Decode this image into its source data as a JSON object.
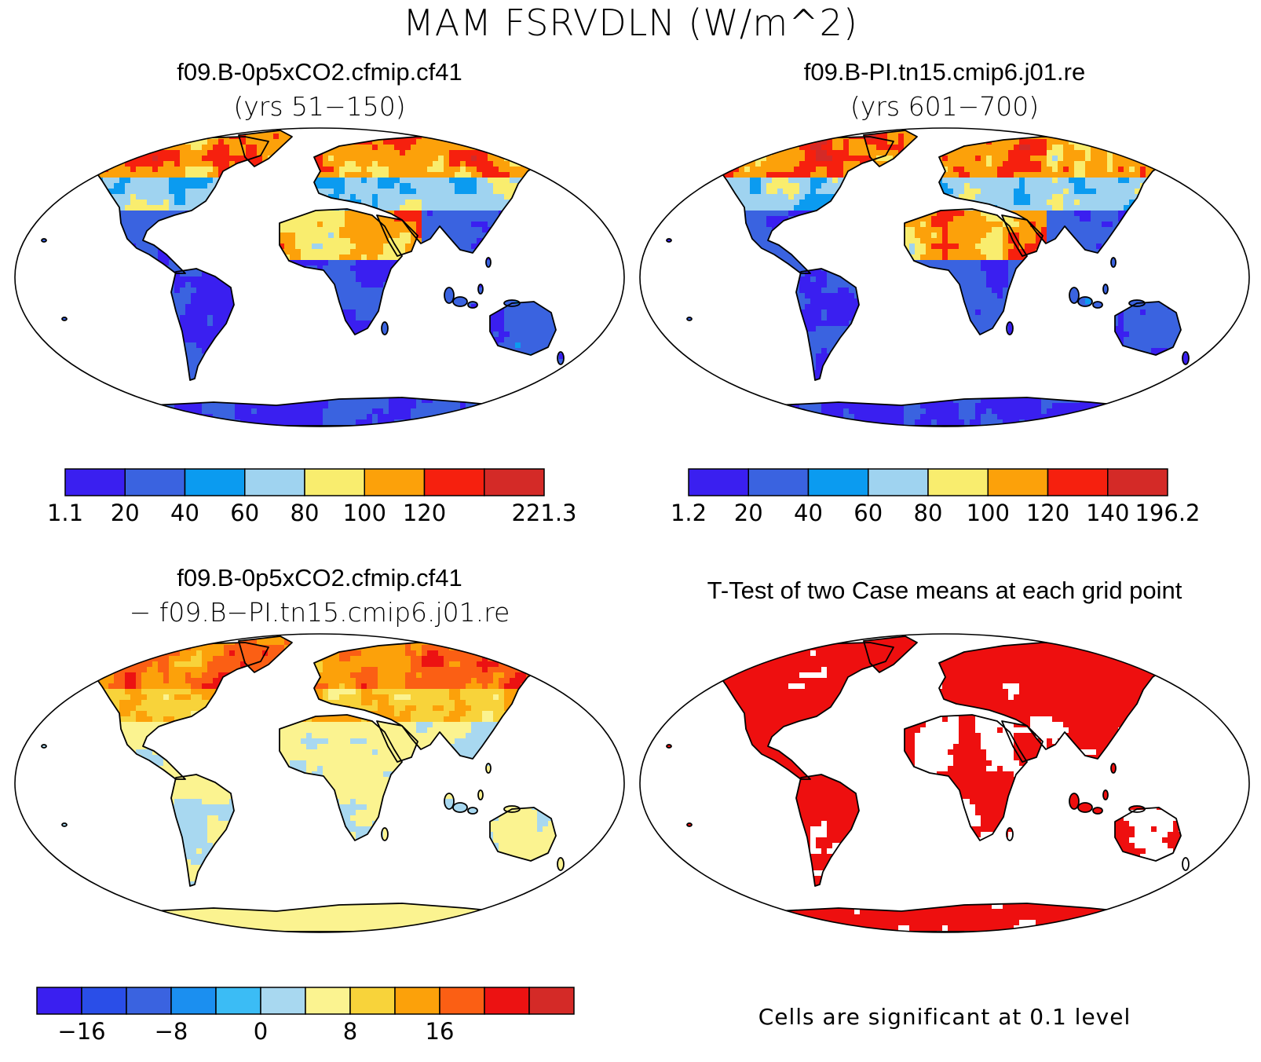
{
  "title": "MAM FSRVDLN (W/m^2)",
  "panels": [
    {
      "title_line1": "f09.B-0p5xCO2.cfmip.cf41",
      "title_line2": "(yrs 51−150)",
      "colorbar": {
        "colors": [
          "#3a1ff0",
          "#3a63e0",
          "#0b9bf0",
          "#9fd3f0",
          "#f9ed6e",
          "#fca10a",
          "#f6200e",
          "#d42a27"
        ],
        "labels": [
          "1.1",
          "20",
          "40",
          "60",
          "80",
          "100",
          "120",
          "",
          "221.3"
        ]
      },
      "map_palette": [
        "#3a1ff0",
        "#3a63e0",
        "#0b9bf0",
        "#9fd3f0",
        "#f9ed6e",
        "#fca10a",
        "#f6200e",
        "#d42a27"
      ]
    },
    {
      "title_line1": "f09.B-PI.tn15.cmip6.j01.re",
      "title_line2": "(yrs 601−700)",
      "colorbar": {
        "colors": [
          "#3a1ff0",
          "#3a63e0",
          "#0b9bf0",
          "#9fd3f0",
          "#f9ed6e",
          "#fca10a",
          "#f6200e",
          "#d42a27"
        ],
        "labels": [
          "1.2",
          "20",
          "40",
          "60",
          "80",
          "100",
          "120",
          "140",
          "196.2"
        ]
      },
      "map_palette": [
        "#3a1ff0",
        "#3a63e0",
        "#0b9bf0",
        "#9fd3f0",
        "#f9ed6e",
        "#fca10a",
        "#f6200e",
        "#d42a27"
      ]
    },
    {
      "title_line1": "f09.B-0p5xCO2.cfmip.cf41",
      "title_line2": "− f09.B−PI.tn15.cmip6.j01.re",
      "colorbar": {
        "colors": [
          "#3a1ff0",
          "#2a4ee8",
          "#3a63e0",
          "#1b8ff0",
          "#3bbcf5",
          "#a8d8f0",
          "#fbf390",
          "#f8d33a",
          "#fca10a",
          "#fb5f14",
          "#ec1212",
          "#d42a27"
        ],
        "labels": [
          "",
          "−16",
          "",
          "−8",
          "",
          "0",
          "",
          "8",
          "",
          "16",
          "",
          ""
        ]
      },
      "map_palette": [
        "#a8d8f0",
        "#fbf390",
        "#f8d33a",
        "#fca10a",
        "#fb5f14",
        "#ec1212"
      ]
    },
    {
      "title_line1": "T-Test of two Case means at each grid point",
      "note": "Cells are significant at 0.1 level",
      "map_palette": [
        "#ee0f0f",
        "#ffffff"
      ]
    }
  ]
}
